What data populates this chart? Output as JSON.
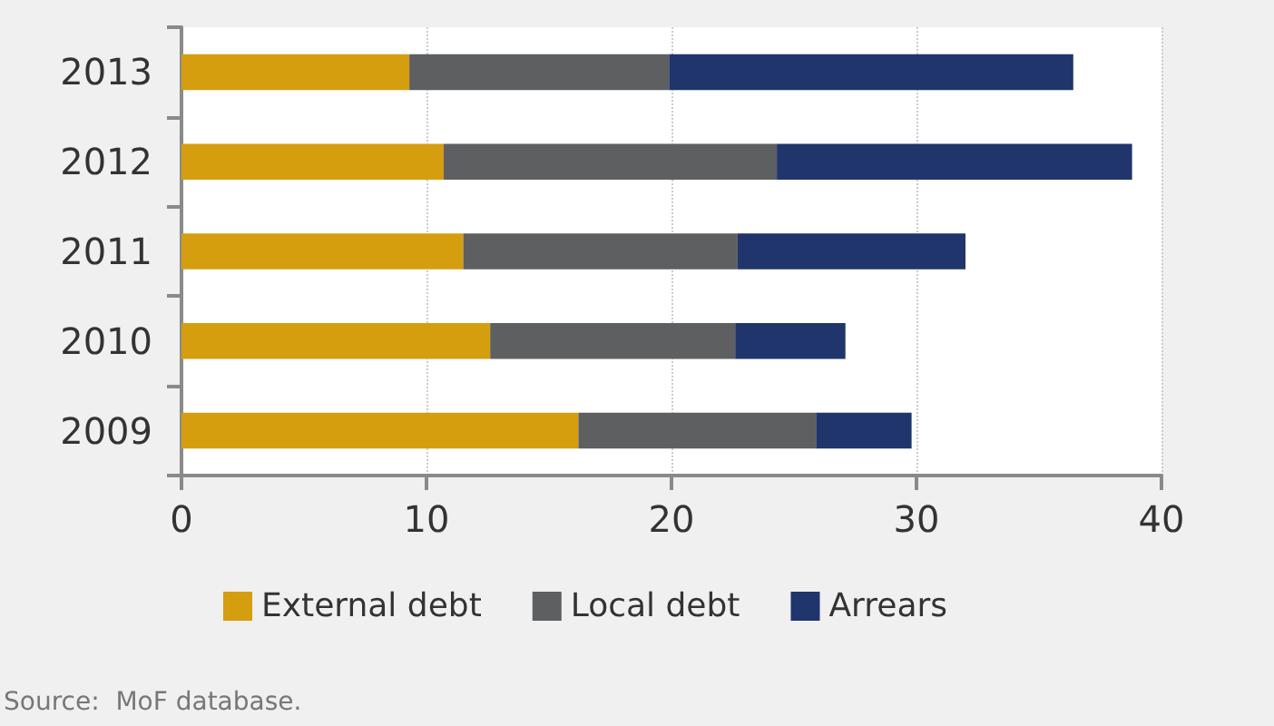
{
  "chart_data": {
    "type": "bar",
    "orientation": "horizontal",
    "stacked": true,
    "categories": [
      "2013",
      "2012",
      "2011",
      "2010",
      "2009"
    ],
    "series": [
      {
        "name": "External debt",
        "color": "#d59e0f",
        "values": [
          9.3,
          10.7,
          11.5,
          12.6,
          16.2
        ]
      },
      {
        "name": "Local debt",
        "color": "#5e5f61",
        "values": [
          10.6,
          13.6,
          11.2,
          10.0,
          9.7
        ]
      },
      {
        "name": "Arrears",
        "color": "#1f356b",
        "values": [
          16.5,
          14.5,
          9.3,
          4.5,
          3.9
        ]
      }
    ],
    "xlim": [
      0,
      40
    ],
    "xticks": [
      0,
      10,
      20,
      30,
      40
    ],
    "grid": "x",
    "legend": "bottom",
    "annotations": [
      "Source:  MoF database."
    ]
  }
}
